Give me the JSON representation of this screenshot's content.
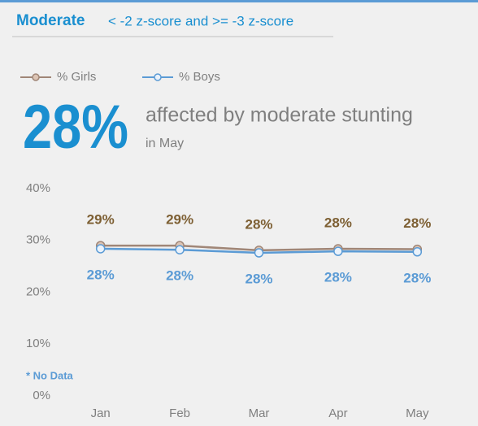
{
  "chart_data": {
    "type": "line",
    "title": "Moderate",
    "subtitle": "< -2 z-score and >= -3 z-score",
    "headline": "28%",
    "headline_text": "affected by moderate stunting",
    "headline_sub": "in May",
    "note": "* No Data",
    "categories": [
      "Jan",
      "Feb",
      "Mar",
      "Apr",
      "May"
    ],
    "series": [
      {
        "name": "% Girls",
        "color": "#a08677",
        "marker_fill": "#dcc4b4",
        "label_color": "#7d5f33",
        "values": [
          29.0,
          29.0,
          28.1,
          28.4,
          28.3
        ],
        "value_labels": [
          "29%",
          "29%",
          "28%",
          "28%",
          "28%"
        ]
      },
      {
        "name": "% Boys",
        "color": "#5b9bd5",
        "marker_fill": "#eaf2fb",
        "label_color": "#5b9bd5",
        "values": [
          28.4,
          28.2,
          27.6,
          27.9,
          27.8
        ],
        "value_labels": [
          "28%",
          "28%",
          "28%",
          "28%",
          "28%"
        ]
      }
    ],
    "ylim": [
      0,
      40
    ],
    "yticks": [
      {
        "value": 0,
        "label": "0%"
      },
      {
        "value": 10,
        "label": "10%"
      },
      {
        "value": 20,
        "label": "20%"
      },
      {
        "value": 30,
        "label": "30%"
      },
      {
        "value": 40,
        "label": "40%"
      }
    ],
    "grid": false
  }
}
